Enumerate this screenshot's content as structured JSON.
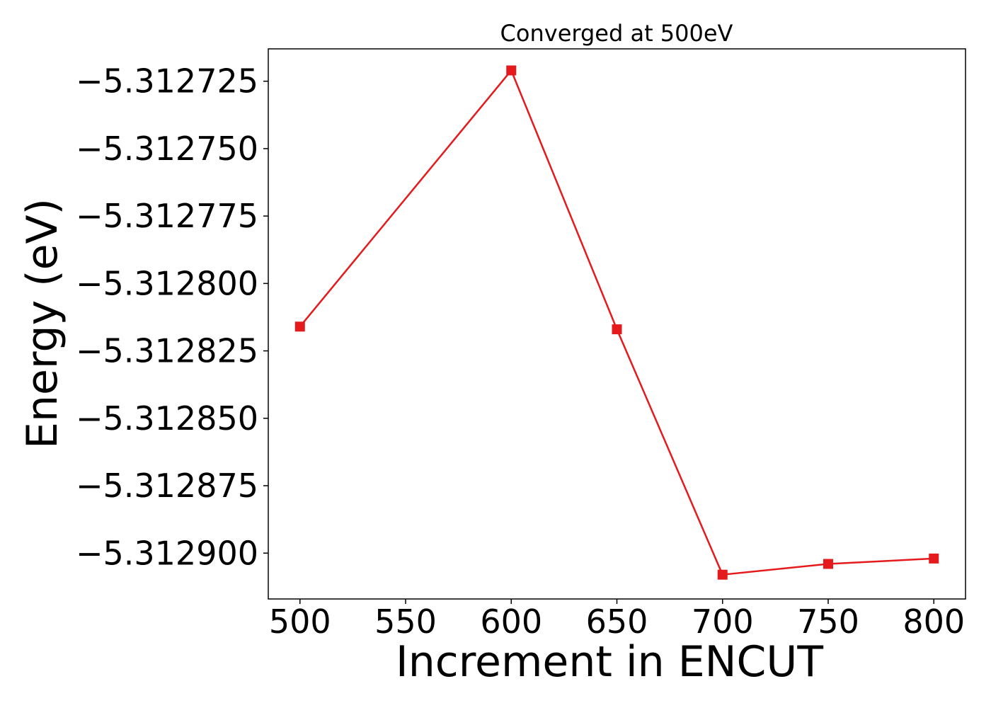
{
  "chart_data": {
    "type": "line",
    "title": "Converged at 500eV",
    "xlabel": "Increment in ENCUT",
    "ylabel": "Energy (eV)",
    "x": [
      500,
      600,
      650,
      700,
      750,
      800
    ],
    "series": [
      {
        "values": [
          -5.312816,
          -5.312721,
          -5.312817,
          -5.312908,
          -5.312904,
          -5.312902
        ],
        "color": "#e41a1c",
        "marker": "square"
      }
    ],
    "xticks": [
      500,
      550,
      600,
      650,
      700,
      750,
      800
    ],
    "xtick_labels": [
      "500",
      "550",
      "600",
      "650",
      "700",
      "750",
      "800"
    ],
    "yticks": [
      -5.3129,
      -5.312875,
      -5.31285,
      -5.312825,
      -5.3128,
      -5.312775,
      -5.31275,
      -5.312725
    ],
    "ytick_labels": [
      "−5.312900",
      "−5.312875",
      "−5.312850",
      "−5.312825",
      "−5.312800",
      "−5.312775",
      "−5.312750",
      "−5.312725"
    ],
    "xlim": [
      485,
      815
    ],
    "ylim": [
      -5.312917,
      -5.312713
    ],
    "grid": false,
    "legend": false
  }
}
